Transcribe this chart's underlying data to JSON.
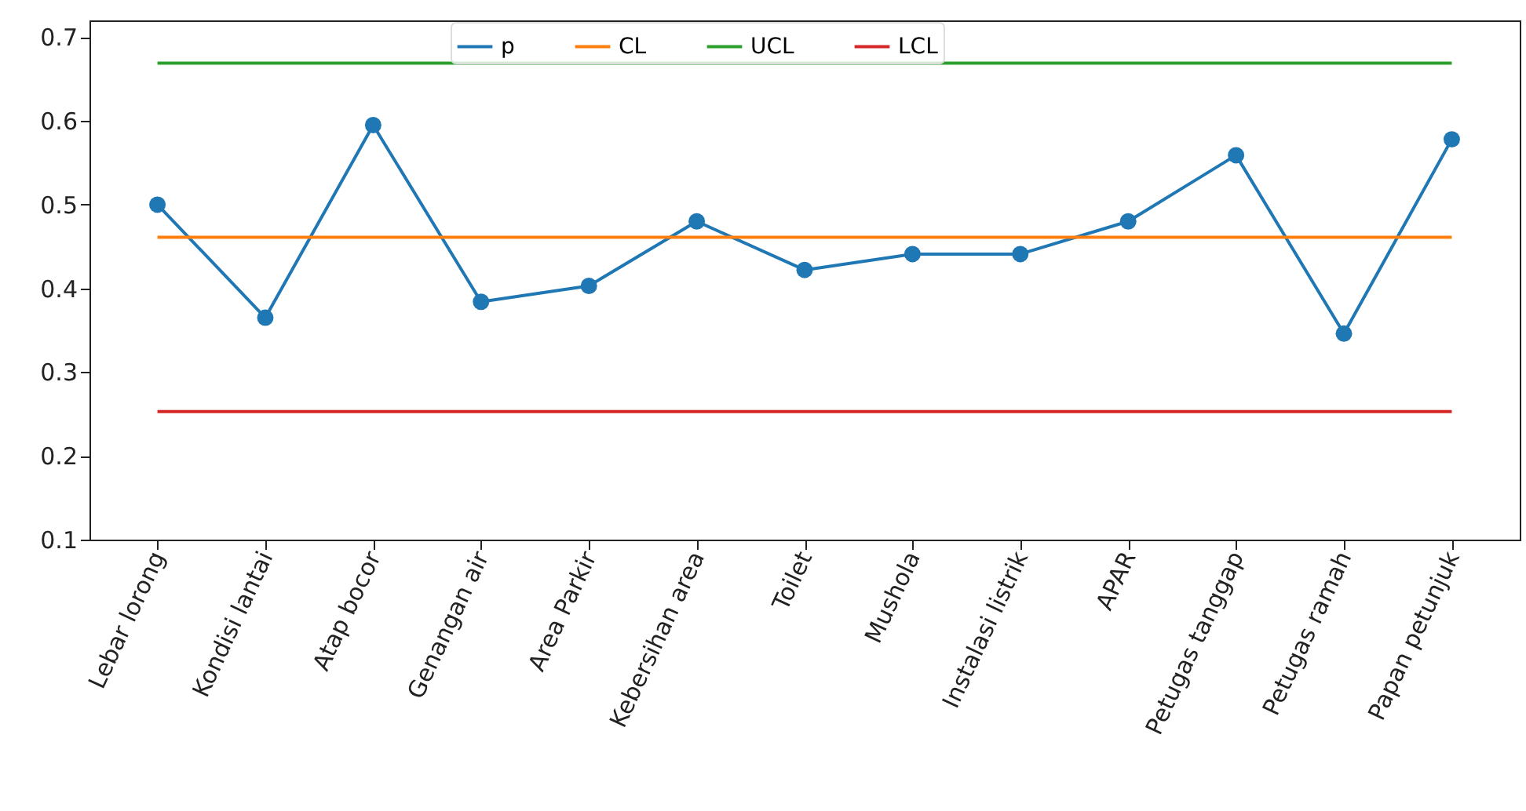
{
  "chart_data": {
    "type": "line",
    "categories": [
      "Lebar lorong",
      "Kondisi lantai",
      "Atap bocor",
      "Genangan air",
      "Area Parkir",
      "Kebersihan area",
      "Toilet",
      "Mushola",
      "Instalasi listrik",
      "APAR",
      "Petugas tanggap",
      "Petugas ramah",
      "Papan petunjuk"
    ],
    "series": [
      {
        "name": "p",
        "color": "#1f77b4",
        "marker": "circle",
        "values": [
          0.5,
          0.365,
          0.595,
          0.384,
          0.403,
          0.48,
          0.422,
          0.441,
          0.441,
          0.48,
          0.559,
          0.346,
          0.578
        ]
      },
      {
        "name": "CL",
        "color": "#ff7f0e",
        "marker": "none",
        "values": [
          0.461,
          0.461,
          0.461,
          0.461,
          0.461,
          0.461,
          0.461,
          0.461,
          0.461,
          0.461,
          0.461,
          0.461,
          0.461
        ]
      },
      {
        "name": "UCL",
        "color": "#2ca02c",
        "marker": "none",
        "values": [
          0.669,
          0.669,
          0.669,
          0.669,
          0.669,
          0.669,
          0.669,
          0.669,
          0.669,
          0.669,
          0.669,
          0.669,
          0.669
        ]
      },
      {
        "name": "LCL",
        "color": "#d62728",
        "marker": "none",
        "values": [
          0.253,
          0.253,
          0.253,
          0.253,
          0.253,
          0.253,
          0.253,
          0.253,
          0.253,
          0.253,
          0.253,
          0.253,
          0.253
        ]
      }
    ],
    "ylim": [
      0.1,
      0.72
    ],
    "yticks": [
      0.1,
      0.2,
      0.3,
      0.4,
      0.5,
      0.6,
      0.7
    ],
    "legend": "top",
    "grid": false
  }
}
